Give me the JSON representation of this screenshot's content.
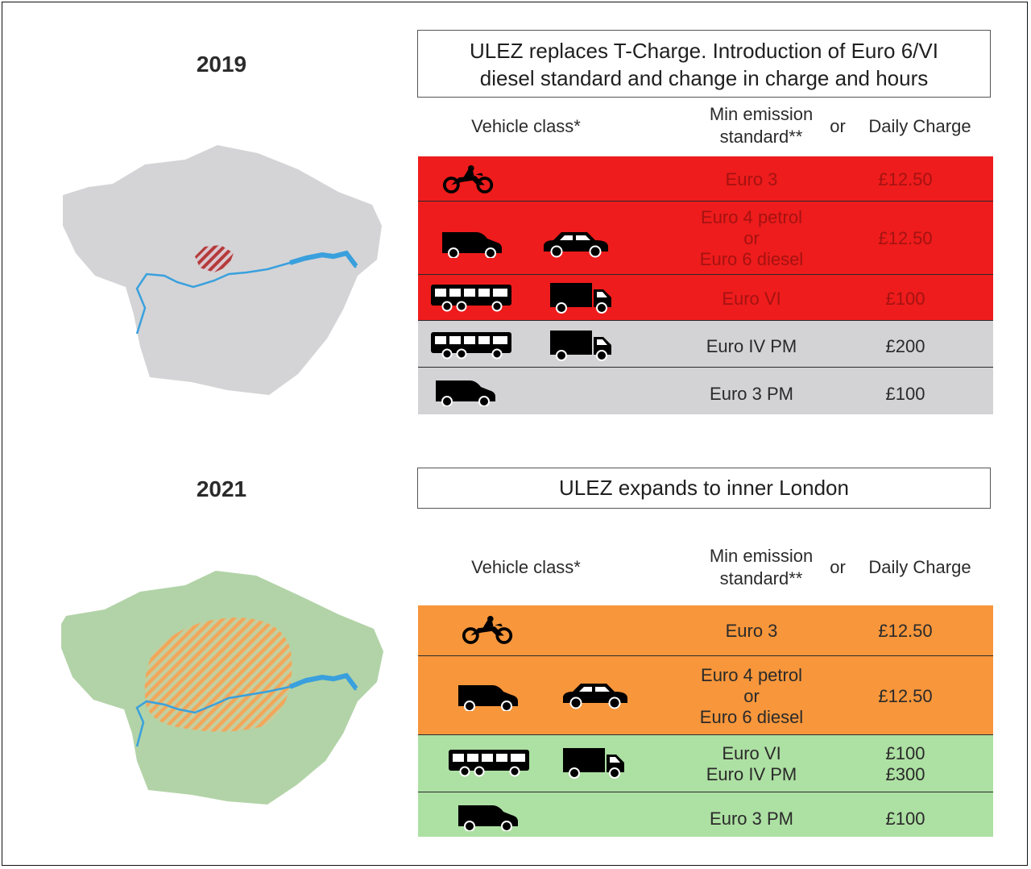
{
  "sections": [
    {
      "year": "2019",
      "heading_line1": "ULEZ replaces T-Charge. Introduction of Euro 6/VI",
      "heading_line2": "diesel standard and change in charge and hours",
      "map_zone_color": "#b84040",
      "col_vehicle": "Vehicle class*",
      "col_min_line1": "Min emission",
      "col_min_line2": "standard**",
      "col_or": "or",
      "col_charge": "Daily Charge",
      "rows": [
        {
          "icons": [
            "motorcycle-icon"
          ],
          "standard": [
            "Euro 3"
          ],
          "charge": [
            "£12.50"
          ],
          "color": "#ee1c1c"
        },
        {
          "icons": [
            "van-icon",
            "car-icon"
          ],
          "standard": [
            "Euro 4 petrol",
            "or",
            "Euro 6 diesel"
          ],
          "charge": [
            "£12.50"
          ],
          "color": "#ee1c1c"
        },
        {
          "icons": [
            "bus-icon",
            "lorry-icon"
          ],
          "standard": [
            "Euro VI"
          ],
          "charge": [
            "£100"
          ],
          "color": "#ee1c1c"
        },
        {
          "icons": [
            "bus-icon",
            "lorry-icon"
          ],
          "standard": [
            "Euro IV PM"
          ],
          "charge": [
            "£200"
          ],
          "color": "#d3d3d5"
        },
        {
          "icons": [
            "van-icon"
          ],
          "standard": [
            "Euro 3 PM"
          ],
          "charge": [
            "£100"
          ],
          "color": "#d3d3d5"
        }
      ]
    },
    {
      "year": "2021",
      "heading_line1": "ULEZ expands to inner London",
      "map_zone_color": "#f7963b",
      "col_vehicle": "Vehicle class*",
      "col_min_line1": "Min emission",
      "col_min_line2": "standard**",
      "col_or": "or",
      "col_charge": "Daily Charge",
      "rows": [
        {
          "icons": [
            "motorcycle-icon"
          ],
          "standard": [
            "Euro 3"
          ],
          "charge": [
            "£12.50"
          ],
          "color": "#f7963b"
        },
        {
          "icons": [
            "van-icon",
            "car-icon"
          ],
          "standard": [
            "Euro 4 petrol",
            "or",
            "Euro 6 diesel"
          ],
          "charge": [
            "£12.50"
          ],
          "color": "#f7963b"
        },
        {
          "icons": [
            "bus-icon",
            "lorry-icon"
          ],
          "standard": [
            "Euro VI",
            "Euro IV PM"
          ],
          "charge": [
            "£100",
            "£300"
          ],
          "color": "#ade0a3"
        },
        {
          "icons": [
            "van-icon"
          ],
          "standard": [
            "Euro 3 PM"
          ],
          "charge": [
            "£100"
          ],
          "color": "#ade0a3"
        }
      ]
    }
  ]
}
